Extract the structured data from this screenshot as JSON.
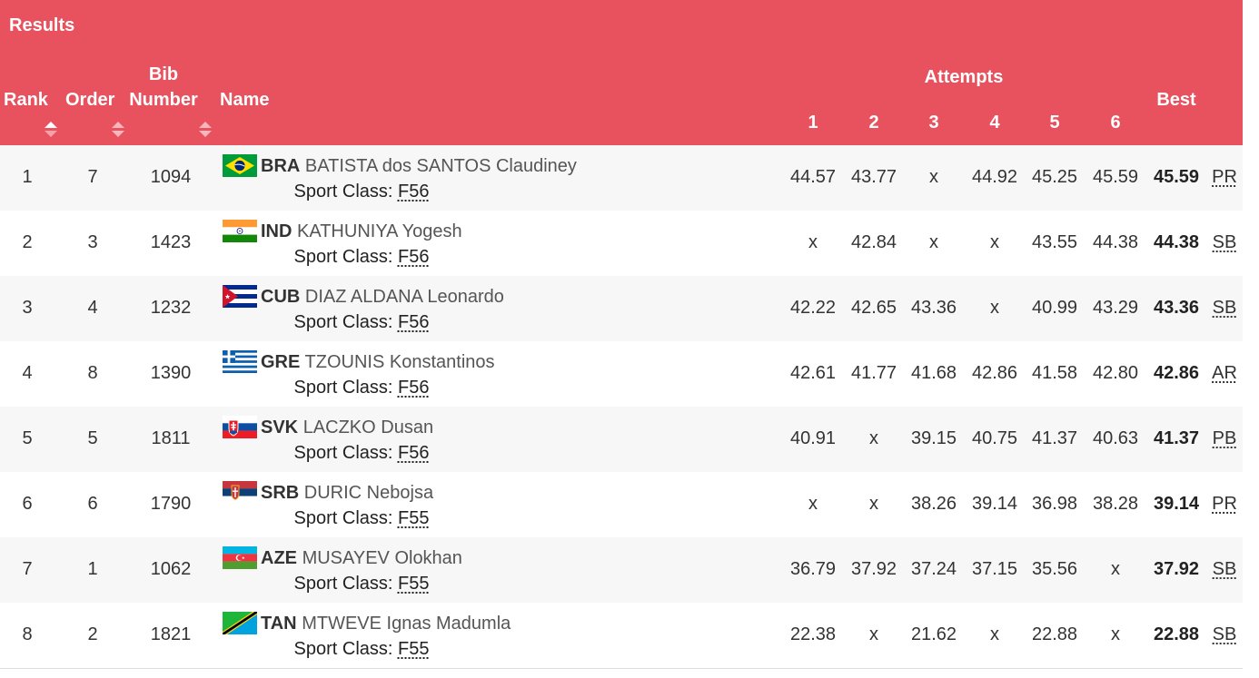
{
  "header": {
    "title": "Results",
    "rank": "Rank",
    "order": "Order",
    "bib_top": "Bib",
    "bib_bottom": "Number",
    "name": "Name",
    "attempts": "Attempts",
    "attempt_numbers": [
      "1",
      "2",
      "3",
      "4",
      "5",
      "6"
    ],
    "best": "Best"
  },
  "sport_class_label": "Sport Class:",
  "rows": [
    {
      "rank": "1",
      "order": "7",
      "bib": "1094",
      "country": "BRA",
      "name": "BATISTA dos SANTOS Claudiney",
      "sport_class": "F56",
      "attempts": [
        "44.57",
        "43.77",
        "x",
        "44.92",
        "45.25",
        "45.59"
      ],
      "best": "45.59",
      "record": "PR",
      "flag": "brazil-flag"
    },
    {
      "rank": "2",
      "order": "3",
      "bib": "1423",
      "country": "IND",
      "name": "KATHUNIYA Yogesh",
      "sport_class": "F56",
      "attempts": [
        "x",
        "42.84",
        "x",
        "x",
        "43.55",
        "44.38"
      ],
      "best": "44.38",
      "record": "SB",
      "flag": "india-flag"
    },
    {
      "rank": "3",
      "order": "4",
      "bib": "1232",
      "country": "CUB",
      "name": "DIAZ ALDANA Leonardo",
      "sport_class": "F56",
      "attempts": [
        "42.22",
        "42.65",
        "43.36",
        "x",
        "40.99",
        "43.29"
      ],
      "best": "43.36",
      "record": "SB",
      "flag": "cuba-flag"
    },
    {
      "rank": "4",
      "order": "8",
      "bib": "1390",
      "country": "GRE",
      "name": "TZOUNIS Konstantinos",
      "sport_class": "F56",
      "attempts": [
        "42.61",
        "41.77",
        "41.68",
        "42.86",
        "41.58",
        "42.80"
      ],
      "best": "42.86",
      "record": "AR",
      "flag": "greece-flag"
    },
    {
      "rank": "5",
      "order": "5",
      "bib": "1811",
      "country": "SVK",
      "name": "LACZKO Dusan",
      "sport_class": "F56",
      "attempts": [
        "40.91",
        "x",
        "39.15",
        "40.75",
        "41.37",
        "40.63"
      ],
      "best": "41.37",
      "record": "PB",
      "flag": "slovakia-flag"
    },
    {
      "rank": "6",
      "order": "6",
      "bib": "1790",
      "country": "SRB",
      "name": "DURIC Nebojsa",
      "sport_class": "F55",
      "attempts": [
        "x",
        "x",
        "38.26",
        "39.14",
        "36.98",
        "38.28"
      ],
      "best": "39.14",
      "record": "PR",
      "flag": "serbia-flag"
    },
    {
      "rank": "7",
      "order": "1",
      "bib": "1062",
      "country": "AZE",
      "name": "MUSAYEV Olokhan",
      "sport_class": "F55",
      "attempts": [
        "36.79",
        "37.92",
        "37.24",
        "37.15",
        "35.56",
        "x"
      ],
      "best": "37.92",
      "record": "SB",
      "flag": "azerbaijan-flag"
    },
    {
      "rank": "8",
      "order": "2",
      "bib": "1821",
      "country": "TAN",
      "name": "MTWEVE Ignas Madumla",
      "sport_class": "F55",
      "attempts": [
        "22.38",
        "x",
        "21.62",
        "x",
        "22.88",
        "x"
      ],
      "best": "22.88",
      "record": "SB",
      "flag": "tanzania-flag"
    }
  ],
  "colors": {
    "header_bg": "#e8525e",
    "header_text": "#ffffff",
    "row_alt_bg": "#f7f7f7"
  }
}
